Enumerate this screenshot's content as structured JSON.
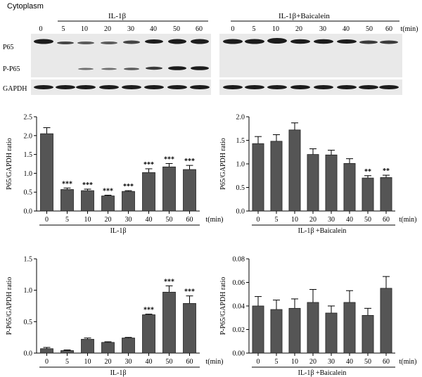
{
  "header": {
    "compartment": "Cytoplasm",
    "left_treatment": "IL-1β",
    "right_treatment": "IL-1β+Baicalein",
    "time_unit_label": "t(min)"
  },
  "blots": {
    "time_points": [
      "0",
      "5",
      "10",
      "20",
      "30",
      "40",
      "50",
      "60"
    ],
    "rows": [
      "P65",
      "P-P65",
      "GAPDH"
    ]
  },
  "chart_data": [
    {
      "type": "bar",
      "title": "",
      "ylabel": "P65/GAPDH ratio",
      "xlabel": "IL-1β",
      "x_unit": "t(min)",
      "categories": [
        "0",
        "5",
        "10",
        "20",
        "30",
        "40",
        "50",
        "60"
      ],
      "values": [
        2.05,
        0.57,
        0.54,
        0.4,
        0.52,
        1.02,
        1.17,
        1.1
      ],
      "errors": [
        0.16,
        0.04,
        0.04,
        0.02,
        0.02,
        0.1,
        0.09,
        0.11
      ],
      "significance": [
        "",
        "***",
        "***",
        "***",
        "***",
        "***",
        "***",
        "***"
      ],
      "ylim": [
        0,
        2.5
      ],
      "yticks": [
        "0.0",
        "0.5",
        "1.0",
        "1.5",
        "2.0",
        "2.5"
      ]
    },
    {
      "type": "bar",
      "title": "",
      "ylabel": "P65/GAPDH ratio",
      "xlabel": "IL-1β +Baicalein",
      "x_unit": "t(min)",
      "categories": [
        "0",
        "5",
        "10",
        "20",
        "30",
        "40",
        "50",
        "60"
      ],
      "values": [
        1.43,
        1.48,
        1.72,
        1.2,
        1.19,
        1.01,
        0.7,
        0.71
      ],
      "errors": [
        0.15,
        0.14,
        0.15,
        0.12,
        0.1,
        0.1,
        0.05,
        0.05
      ],
      "significance": [
        "",
        "",
        "",
        "",
        "",
        "",
        "**",
        "**"
      ],
      "ylim": [
        0,
        2.0
      ],
      "yticks": [
        "0.0",
        "0.5",
        "1.0",
        "1.5",
        "2.0"
      ]
    },
    {
      "type": "bar",
      "title": "",
      "ylabel": "P-P65/GAPDH ratio",
      "xlabel": "IL-1β",
      "x_unit": "t(min)",
      "categories": [
        "0",
        "5",
        "10",
        "20",
        "30",
        "40",
        "50",
        "60"
      ],
      "values": [
        0.07,
        0.04,
        0.22,
        0.17,
        0.24,
        0.61,
        0.97,
        0.79
      ],
      "errors": [
        0.02,
        0.01,
        0.02,
        0.01,
        0.01,
        0.01,
        0.1,
        0.12
      ],
      "significance": [
        "",
        "",
        "",
        "",
        "",
        "***",
        "***",
        "***"
      ],
      "ylim": [
        0,
        1.5
      ],
      "yticks": [
        "0.0",
        "0.5",
        "1.0",
        "1.5"
      ]
    },
    {
      "type": "bar",
      "title": "",
      "ylabel": "P-P65/GAPDH ratio",
      "xlabel": "IL-1β +Baicalein",
      "x_unit": "t(min)",
      "categories": [
        "0",
        "5",
        "10",
        "20",
        "30",
        "40",
        "50",
        "60"
      ],
      "values": [
        0.04,
        0.037,
        0.038,
        0.043,
        0.034,
        0.043,
        0.032,
        0.055
      ],
      "errors": [
        0.008,
        0.008,
        0.008,
        0.011,
        0.006,
        0.01,
        0.006,
        0.01
      ],
      "significance": [
        "",
        "",
        "",
        "",
        "",
        "",
        "",
        ""
      ],
      "ylim": [
        0,
        0.08
      ],
      "yticks": [
        "0.00",
        "0.02",
        "0.04",
        "0.06",
        "0.08"
      ]
    }
  ]
}
